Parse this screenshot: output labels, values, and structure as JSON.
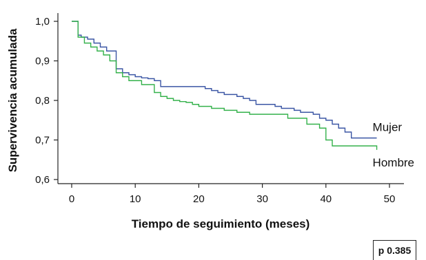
{
  "chart_data": {
    "type": "line",
    "title": "",
    "xlabel": "Tiempo de seguimiento (meses)",
    "ylabel": "Supervivencia acumulada",
    "xlim": [
      0,
      50
    ],
    "ylim": [
      0.6,
      1.0
    ],
    "xticks": [
      "0",
      "10",
      "20",
      "30",
      "40",
      "50"
    ],
    "yticks": [
      "0,6",
      "0,7",
      "0,8",
      "0,9",
      "1,0"
    ],
    "grid": false,
    "step": true,
    "series": [
      {
        "name": "Mujer",
        "color": "#3a55a4",
        "x": [
          0,
          1,
          1.5,
          2.5,
          3.5,
          4.5,
          5.5,
          7,
          8,
          9,
          10,
          11,
          12,
          13,
          14,
          17,
          21,
          22,
          23,
          24,
          26,
          27,
          28,
          29,
          32,
          33,
          35,
          36,
          38,
          39,
          40,
          41,
          42,
          43,
          44,
          48
        ],
        "y": [
          1.0,
          0.965,
          0.96,
          0.955,
          0.945,
          0.935,
          0.925,
          0.88,
          0.87,
          0.865,
          0.86,
          0.857,
          0.855,
          0.85,
          0.835,
          0.835,
          0.83,
          0.825,
          0.82,
          0.815,
          0.81,
          0.805,
          0.8,
          0.79,
          0.785,
          0.78,
          0.775,
          0.77,
          0.765,
          0.755,
          0.75,
          0.74,
          0.73,
          0.72,
          0.705,
          0.705
        ]
      },
      {
        "name": "Hombre",
        "color": "#33b14a",
        "x": [
          0,
          1,
          2,
          3,
          4,
          5,
          6,
          7,
          8,
          9,
          11,
          13,
          14,
          15,
          16,
          17,
          18,
          19,
          20,
          22,
          24,
          26,
          28,
          34,
          37,
          39,
          40,
          41,
          48
        ],
        "y": [
          1.0,
          0.96,
          0.945,
          0.935,
          0.925,
          0.915,
          0.9,
          0.87,
          0.86,
          0.85,
          0.84,
          0.82,
          0.81,
          0.805,
          0.8,
          0.797,
          0.795,
          0.79,
          0.785,
          0.78,
          0.775,
          0.77,
          0.765,
          0.755,
          0.74,
          0.73,
          0.7,
          0.685,
          0.675
        ]
      }
    ],
    "annotation": "p 0.385"
  }
}
